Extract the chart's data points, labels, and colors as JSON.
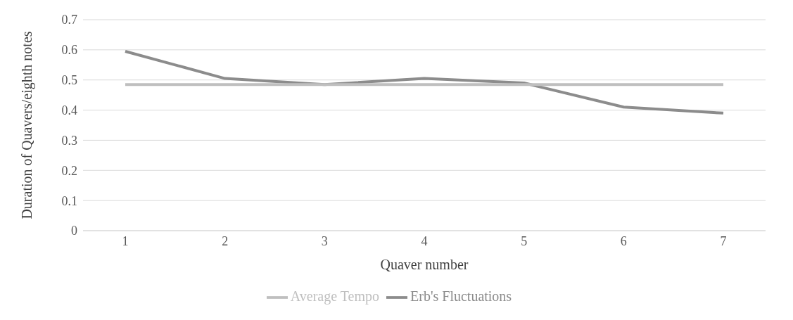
{
  "chart_data": {
    "type": "line",
    "xlabel": "Quaver number",
    "ylabel": "Duration of Quavers/eighth notes",
    "categories": [
      "1",
      "2",
      "3",
      "4",
      "5",
      "6",
      "7"
    ],
    "series": [
      {
        "name": "Erb's Fluctuations",
        "color": "#8c8c8c",
        "values": [
          0.595,
          0.505,
          0.485,
          0.505,
          0.49,
          0.41,
          0.39
        ]
      },
      {
        "name": "Average Tempo",
        "color": "#bfbfbf",
        "values": [
          0.485,
          0.485,
          0.485,
          0.485,
          0.485,
          0.485,
          0.485
        ]
      }
    ],
    "ylim": [
      0,
      0.7
    ],
    "yticks": [
      0,
      0.1,
      0.2,
      0.3,
      0.4,
      0.5,
      0.6,
      0.7
    ],
    "grid": "y",
    "legend": "bottom",
    "marker": "none",
    "line_style": "solid"
  }
}
